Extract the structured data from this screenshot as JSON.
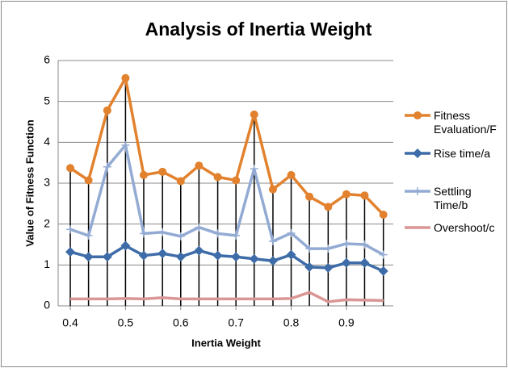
{
  "chart_data": {
    "type": "line",
    "title": "Analysis of Inertia Weight",
    "x_label": "Inertia Weight",
    "y_label": "Value of Fitness Function",
    "x": [
      0.4,
      0.433,
      0.467,
      0.5,
      0.533,
      0.567,
      0.6,
      0.633,
      0.667,
      0.7,
      0.733,
      0.767,
      0.8,
      0.833,
      0.867,
      0.9,
      0.933,
      0.967
    ],
    "xlim": [
      0.378,
      0.985
    ],
    "xticks": [
      0.4,
      0.5,
      0.6,
      0.7,
      0.8,
      0.9
    ],
    "ylim": [
      0,
      6
    ],
    "yticks": [
      0,
      1,
      2,
      3,
      4,
      5,
      6
    ],
    "grid": true,
    "legend": "right",
    "drop_lines": true,
    "series": [
      {
        "name": "Fitness Evaluation/F",
        "color": "#e2822e",
        "marker": "circle",
        "values": [
          3.37,
          3.07,
          4.78,
          5.57,
          3.2,
          3.28,
          3.05,
          3.43,
          3.15,
          3.07,
          4.68,
          2.85,
          3.2,
          2.67,
          2.42,
          2.73,
          2.7,
          2.23
        ]
      },
      {
        "name": "Rise time/a",
        "color": "#3e6ca8",
        "marker": "diamond",
        "values": [
          1.32,
          1.2,
          1.2,
          1.47,
          1.23,
          1.28,
          1.2,
          1.35,
          1.23,
          1.2,
          1.15,
          1.1,
          1.25,
          0.95,
          0.93,
          1.05,
          1.05,
          0.85
        ]
      },
      {
        "name": "Settling Time/b",
        "color": "#93abd3",
        "marker": "plus",
        "values": [
          1.87,
          1.72,
          3.4,
          3.93,
          1.77,
          1.8,
          1.7,
          1.92,
          1.77,
          1.72,
          3.35,
          1.58,
          1.78,
          1.4,
          1.4,
          1.52,
          1.5,
          1.25
        ]
      },
      {
        "name": "Overshoot/c",
        "color": "#d99694",
        "marker": "none",
        "values": [
          0.17,
          0.17,
          0.17,
          0.18,
          0.17,
          0.2,
          0.17,
          0.17,
          0.17,
          0.17,
          0.17,
          0.17,
          0.18,
          0.33,
          0.1,
          0.15,
          0.14,
          0.13
        ]
      }
    ]
  }
}
